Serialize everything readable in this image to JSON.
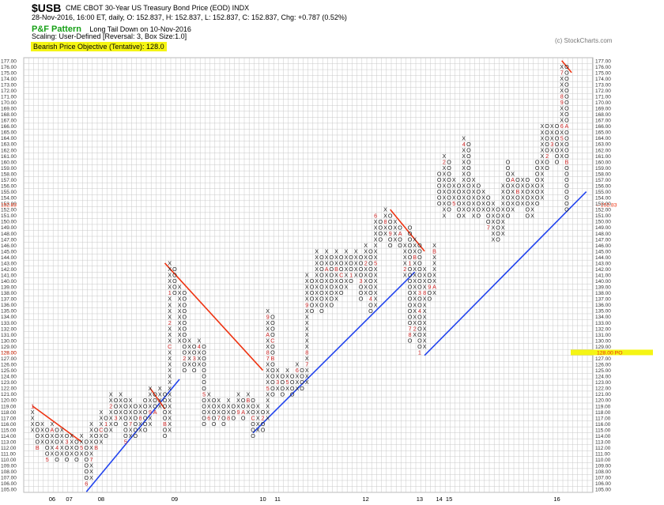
{
  "header": {
    "symbol": "$USB",
    "description": "CME CBOT 30-Year US Treasury Bond Price (EOD)  INDX",
    "quote_line": "28-Nov-2016, 16:00 ET, daily, O: 152.837, H: 152.837, L: 152.837, C: 152.837, Chg: +0.787 (0.52%)",
    "pattern_label": "P&F Pattern",
    "pattern_value": "Long Tail Down on 10-Nov-2016",
    "scaling": "Scaling: User-Defined [Reversal: 3, Box Size:1.0]",
    "objective": "Bearish Price Objective (Tentative): 128.0",
    "copyright": "(c) StockCharts.com"
  },
  "colors": {
    "grid": "#c8c8c8",
    "mark": "#222222",
    "month_digit": "#cc2222",
    "bullish_line": "#2244ee",
    "bearish_line": "#ee3311",
    "highlight": "#f5f514",
    "pattern_green": "#16a016"
  },
  "chart_data": {
    "type": "point-and-figure",
    "box_size": 1.0,
    "reversal": 3,
    "ylim": [
      105,
      177
    ],
    "grid": true,
    "x_tick_labels": [
      "06",
      "07",
      "08",
      "09",
      "10",
      "11",
      "12",
      "13",
      "14",
      "15",
      "16"
    ],
    "price_markers": [
      {
        "label": "152.83",
        "value": 152.837
      },
      {
        "label": "128.00",
        "value": 128.0,
        "tag": "PO"
      }
    ],
    "columns": [
      {
        "type": "X",
        "low": 115,
        "high": 119,
        "marks": {
          "119": "1"
        }
      },
      {
        "type": "O",
        "low": 112,
        "high": 116,
        "marks": {
          "112": "B"
        }
      },
      {
        "type": "X",
        "low": 113,
        "high": 116
      },
      {
        "type": "O",
        "low": 110,
        "high": 115,
        "marks": {
          "110": "5"
        }
      },
      {
        "type": "X",
        "low": 111,
        "high": 116,
        "marks": {
          "115": "A"
        }
      },
      {
        "type": "O",
        "low": 110,
        "high": 115,
        "marks": {
          "112": "4"
        }
      },
      {
        "type": "X",
        "low": 111,
        "high": 115
      },
      {
        "type": "O",
        "low": 110,
        "high": 114,
        "marks": {
          "113": "3"
        }
      },
      {
        "type": "X",
        "low": 111,
        "high": 114
      },
      {
        "type": "O",
        "low": 110,
        "high": 113
      },
      {
        "type": "X",
        "low": 111,
        "high": 114,
        "marks": {
          "112": "5"
        }
      },
      {
        "type": "O",
        "low": 106,
        "high": 113,
        "marks": {
          "106": "6"
        }
      },
      {
        "type": "X",
        "low": 107,
        "high": 116,
        "marks": {
          "110": "7"
        }
      },
      {
        "type": "O",
        "low": 112,
        "high": 115,
        "marks": {
          "112": "B"
        }
      },
      {
        "type": "X",
        "low": 113,
        "high": 118,
        "marks": {
          "115": "C"
        }
      },
      {
        "type": "O",
        "low": 114,
        "high": 117,
        "marks": {
          "116": "1"
        }
      },
      {
        "type": "X",
        "low": 115,
        "high": 121,
        "marks": {
          "119": "2"
        }
      },
      {
        "type": "O",
        "low": 116,
        "high": 120,
        "marks": {
          "117": "3"
        }
      },
      {
        "type": "X",
        "low": 117,
        "high": 121
      },
      {
        "type": "O",
        "low": 113,
        "high": 120,
        "marks": {
          "113": "5"
        }
      },
      {
        "type": "X",
        "low": 114,
        "high": 120,
        "marks": {
          "116": "7"
        }
      },
      {
        "type": "O",
        "low": 114,
        "high": 119
      },
      {
        "type": "X",
        "low": 115,
        "high": 119,
        "marks": {
          "117": "8"
        }
      },
      {
        "type": "O",
        "low": 115,
        "high": 120
      },
      {
        "type": "X",
        "low": 116,
        "high": 122,
        "marks": {
          "118": "9"
        }
      },
      {
        "type": "O",
        "low": 118,
        "high": 121,
        "marks": {
          "118": "A"
        }
      },
      {
        "type": "X",
        "low": 119,
        "high": 122
      },
      {
        "type": "O",
        "low": 114,
        "high": 121,
        "marks": {
          "116": "B"
        }
      },
      {
        "type": "X",
        "low": 115,
        "high": 143,
        "marks": {
          "129": "C",
          "133": "2",
          "138": "1"
        }
      },
      {
        "type": "O",
        "low": 138,
        "high": 142
      },
      {
        "type": "X",
        "low": 130,
        "high": 139
      },
      {
        "type": "O",
        "low": 125,
        "high": 138,
        "marks": {
          "127": "2"
        }
      },
      {
        "type": "X",
        "low": 126,
        "high": 130
      },
      {
        "type": "O",
        "low": 125,
        "high": 129,
        "marks": {
          "127": "3"
        }
      },
      {
        "type": "X",
        "low": 126,
        "high": 130,
        "marks": {
          "129": "4"
        }
      },
      {
        "type": "O",
        "low": 116,
        "high": 129,
        "marks": {
          "121": "5"
        }
      },
      {
        "type": "X",
        "low": 117,
        "high": 121,
        "marks": {
          "117": "6"
        }
      },
      {
        "type": "O",
        "low": 116,
        "high": 120
      },
      {
        "type": "X",
        "low": 117,
        "high": 120,
        "marks": {
          "117": "7"
        }
      },
      {
        "type": "O",
        "low": 116,
        "high": 119
      },
      {
        "type": "X",
        "low": 117,
        "high": 120,
        "marks": {
          "117": "8"
        }
      },
      {
        "type": "O",
        "low": 117,
        "high": 119
      },
      {
        "type": "X",
        "low": 118,
        "high": 121,
        "marks": {
          "118": "9"
        }
      },
      {
        "type": "O",
        "low": 117,
        "high": 120,
        "marks": {
          "118": "A"
        }
      },
      {
        "type": "X",
        "low": 118,
        "high": 121,
        "marks": {
          "120": "B"
        }
      },
      {
        "type": "O",
        "low": 114,
        "high": 120,
        "marks": {
          "117": "C"
        }
      },
      {
        "type": "X",
        "low": 115,
        "high": 119
      },
      {
        "type": "O",
        "low": 115,
        "high": 118,
        "marks": {
          "117": "2"
        }
      },
      {
        "type": "X",
        "low": 117,
        "high": 135,
        "marks": {
          "122": "5",
          "127": "7",
          "128": "8",
          "131": "A",
          "134": "9"
        }
      },
      {
        "type": "O",
        "low": 121,
        "high": 134,
        "marks": {
          "127": "B",
          "130": "C"
        }
      },
      {
        "type": "X",
        "low": 122,
        "high": 125,
        "marks": {
          "123": "3"
        }
      },
      {
        "type": "O",
        "low": 121,
        "high": 124
      },
      {
        "type": "X",
        "low": 122,
        "high": 125,
        "marks": {
          "123": "5"
        }
      },
      {
        "type": "O",
        "low": 121,
        "high": 124
      },
      {
        "type": "X",
        "low": 122,
        "high": 126,
        "marks": {
          "125": "6"
        }
      },
      {
        "type": "O",
        "low": 122,
        "high": 125
      },
      {
        "type": "X",
        "low": 123,
        "high": 141,
        "marks": {
          "126": "7",
          "128": "8",
          "136": "9"
        }
      },
      {
        "type": "O",
        "low": 135,
        "high": 140
      },
      {
        "type": "X",
        "low": 136,
        "high": 145
      },
      {
        "type": "O",
        "low": 135,
        "high": 144
      },
      {
        "type": "X",
        "low": 136,
        "high": 145,
        "marks": {
          "142": "A"
        }
      },
      {
        "type": "O",
        "low": 136,
        "high": 144
      },
      {
        "type": "X",
        "low": 137,
        "high": 145,
        "marks": {
          "142": "B"
        }
      },
      {
        "type": "O",
        "low": 138,
        "high": 144,
        "marks": {
          "141": "C"
        }
      },
      {
        "type": "X",
        "low": 139,
        "high": 145
      },
      {
        "type": "O",
        "low": 140,
        "high": 144,
        "marks": {
          "141": "1"
        }
      },
      {
        "type": "X",
        "low": 141,
        "high": 145
      },
      {
        "type": "O",
        "low": 137,
        "high": 144,
        "marks": {
          "140": "3"
        }
      },
      {
        "type": "X",
        "low": 138,
        "high": 146,
        "marks": {
          "143": "2"
        }
      },
      {
        "type": "O",
        "low": 135,
        "high": 145,
        "marks": {
          "137": "4"
        }
      },
      {
        "type": "X",
        "low": 136,
        "high": 151,
        "marks": {
          "143": "5",
          "151": "6"
        }
      },
      {
        "type": "O",
        "low": 147,
        "high": 150
      },
      {
        "type": "X",
        "low": 148,
        "high": 152,
        "marks": {
          "150": "8"
        }
      },
      {
        "type": "O",
        "low": 146,
        "high": 151,
        "marks": {
          "148": "9"
        }
      },
      {
        "type": "X",
        "low": 147,
        "high": 150
      },
      {
        "type": "O",
        "low": 146,
        "high": 149,
        "marks": {
          "148": "A"
        }
      },
      {
        "type": "X",
        "low": 141,
        "high": 146,
        "marks": {
          "142": "2"
        }
      },
      {
        "type": "O",
        "low": 130,
        "high": 149,
        "marks": {
          "143": "1",
          "132": "7",
          "131": "8"
        }
      },
      {
        "type": "X",
        "low": 131,
        "high": 147,
        "marks": {
          "144": "B",
          "149": "C",
          "132": "2"
        }
      },
      {
        "type": "O",
        "low": 128,
        "high": 146,
        "marks": {
          "138": "3",
          "128": "1",
          "135": "4"
        }
      },
      {
        "type": "X",
        "low": 129,
        "high": 142,
        "marks": {
          "138": "8"
        }
      },
      {
        "type": "O",
        "low": 137,
        "high": 141,
        "marks": {
          "139": "9"
        }
      },
      {
        "type": "X",
        "low": 138,
        "high": 146,
        "marks": {
          "139": "A",
          "145": "B"
        }
      },
      {
        "type": "O",
        "low": 153,
        "high": 158
      },
      {
        "type": "X",
        "low": 151,
        "high": 161,
        "marks": {
          "160": "2"
        }
      },
      {
        "type": "O",
        "low": 152,
        "high": 160
      },
      {
        "type": "X",
        "low": 153,
        "high": 157,
        "marks": {
          "153": "5"
        }
      },
      {
        "type": "O",
        "low": 151,
        "high": 156
      },
      {
        "type": "X",
        "low": 151,
        "high": 164,
        "marks": {
          "163": "4"
        }
      },
      {
        "type": "O",
        "low": 152,
        "high": 163
      },
      {
        "type": "X",
        "low": 151,
        "high": 157
      },
      {
        "type": "O",
        "low": 151,
        "high": 156
      },
      {
        "type": "X",
        "low": 152,
        "high": 155
      },
      {
        "type": "O",
        "low": 149,
        "high": 154,
        "marks": {
          "149": "7"
        }
      },
      {
        "type": "X",
        "low": 147,
        "high": 153
      },
      {
        "type": "O",
        "low": 147,
        "high": 152
      },
      {
        "type": "X",
        "low": 148,
        "high": 156
      },
      {
        "type": "O",
        "low": 151,
        "high": 160
      },
      {
        "type": "X",
        "low": 152,
        "high": 158,
        "marks": {
          "157": "A"
        }
      },
      {
        "type": "O",
        "low": 153,
        "high": 157,
        "marks": {
          "155": "B"
        }
      },
      {
        "type": "X",
        "low": 153,
        "high": 157
      },
      {
        "type": "O",
        "low": 151,
        "high": 157
      },
      {
        "type": "X",
        "low": 151,
        "high": 156
      },
      {
        "type": "O",
        "low": 153,
        "high": 160
      },
      {
        "type": "X",
        "low": 154,
        "high": 166
      },
      {
        "type": "O",
        "low": 159,
        "high": 166,
        "marks": {
          "161": "2"
        }
      },
      {
        "type": "X",
        "low": 162,
        "high": 166,
        "marks": {
          "163": "3"
        }
      },
      {
        "type": "O",
        "low": 160,
        "high": 166
      },
      {
        "type": "X",
        "low": 161,
        "high": 176,
        "marks": {
          "170": "9",
          "171": "8",
          "175": "7",
          "166": "6",
          "164": "5"
        }
      },
      {
        "type": "O",
        "low": 152,
        "high": 176,
        "marks": {
          "166": "A",
          "160": "B"
        }
      }
    ]
  }
}
